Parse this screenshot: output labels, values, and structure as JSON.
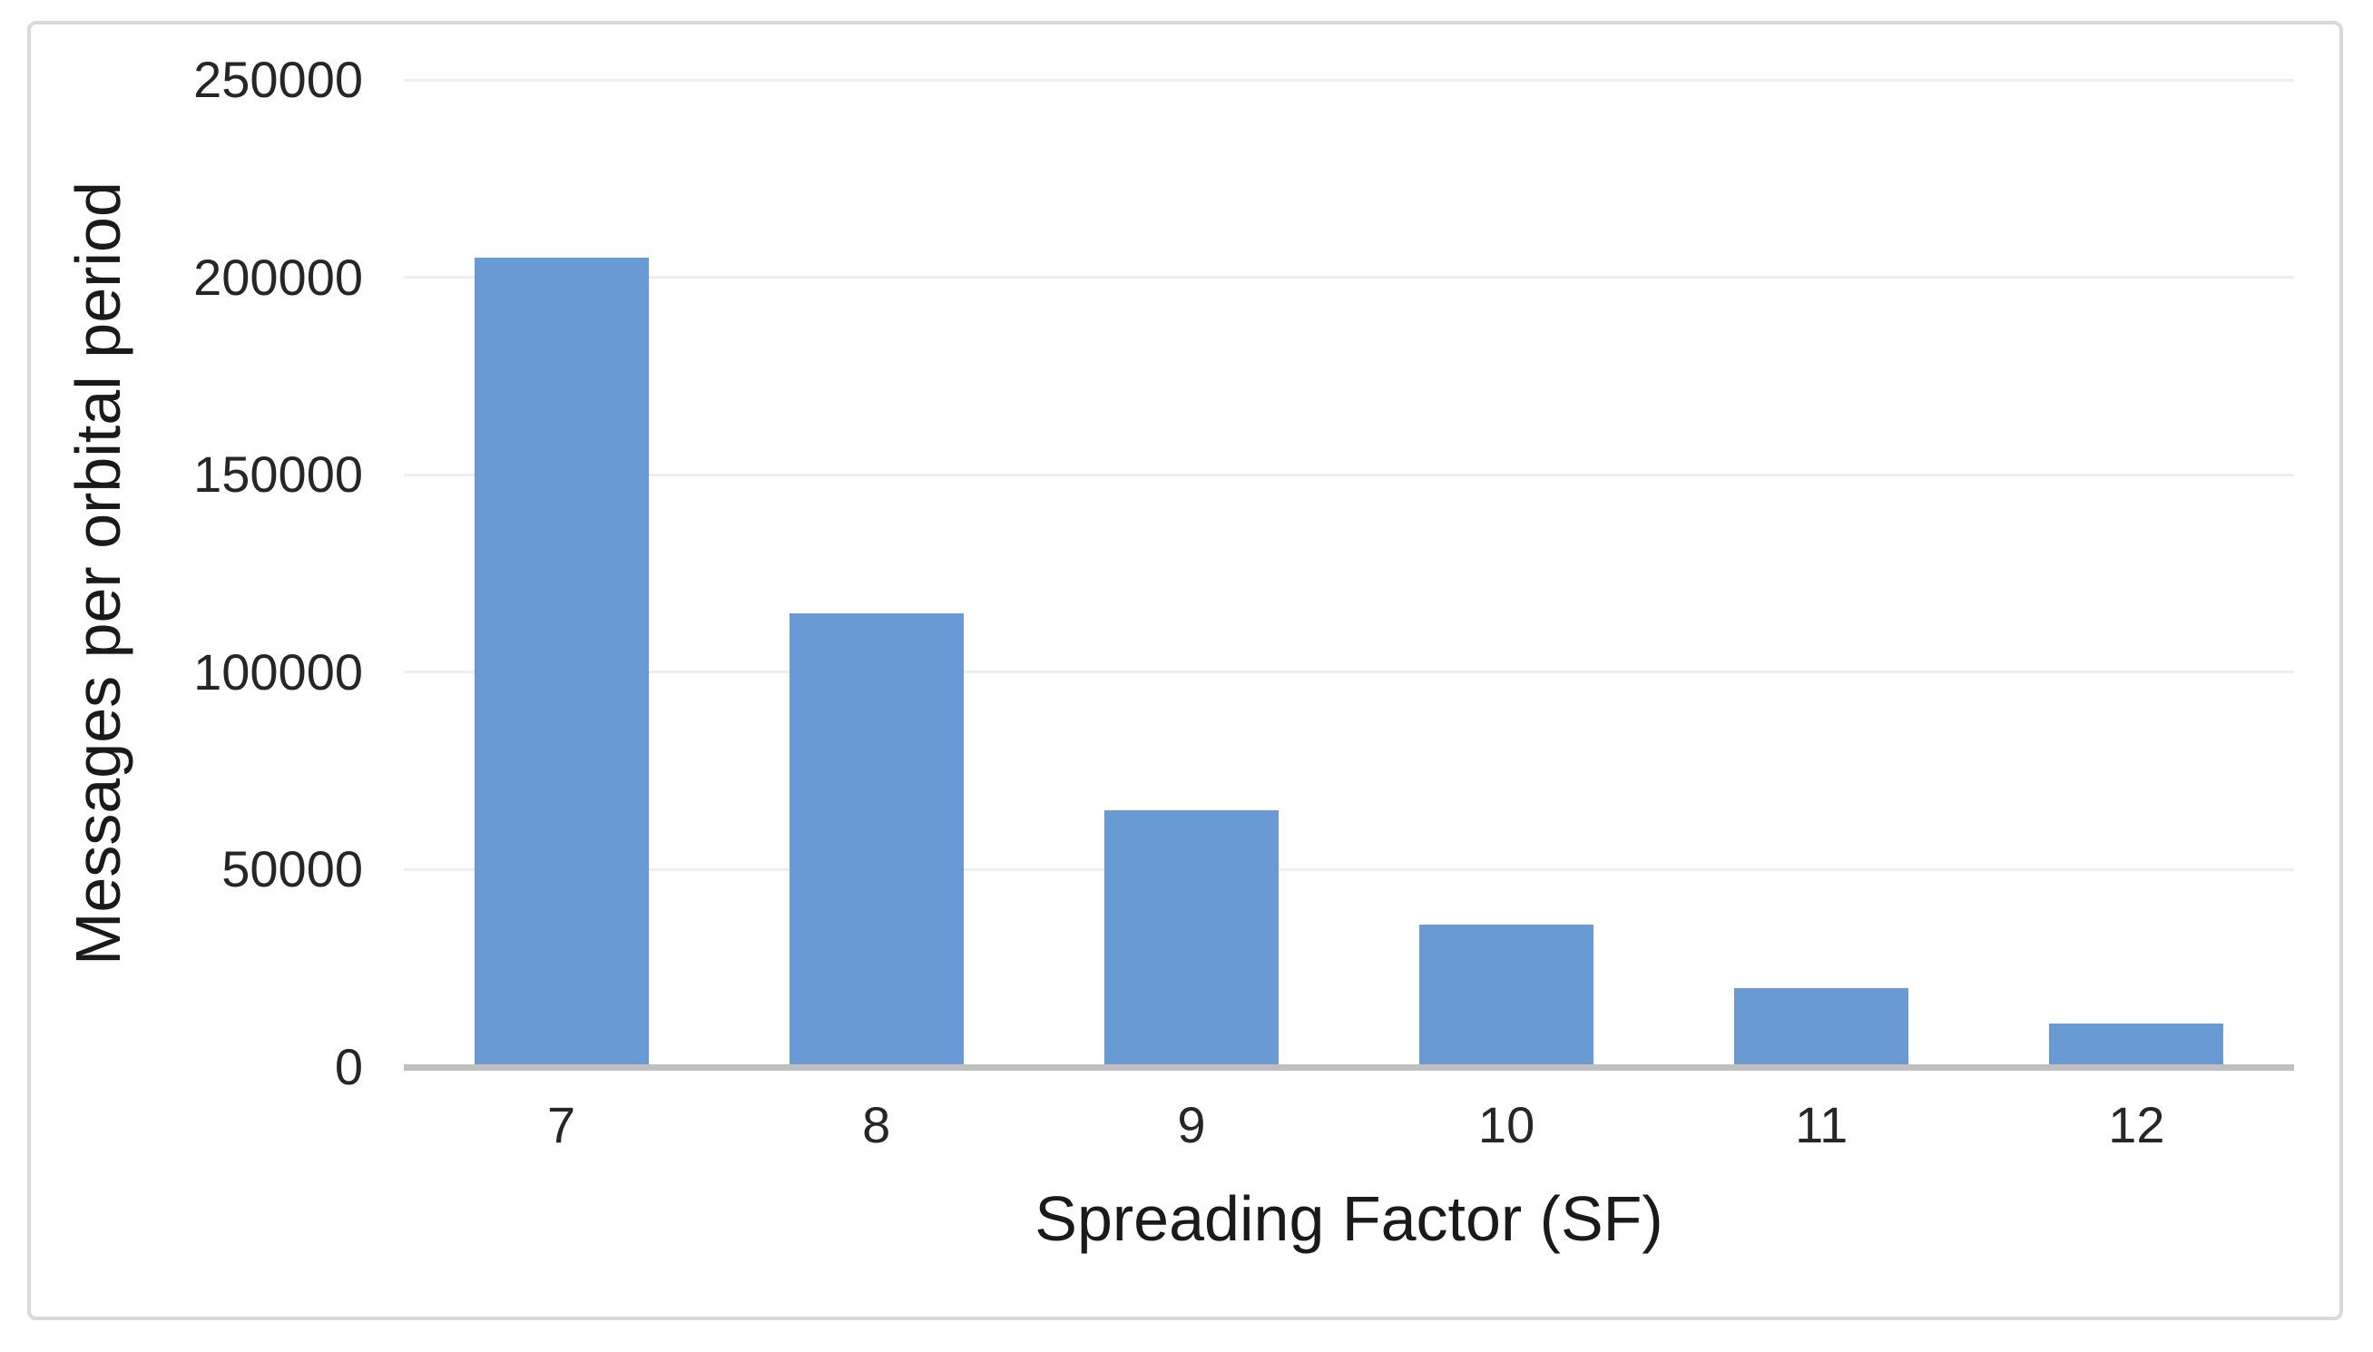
{
  "chart_data": {
    "type": "bar",
    "categories": [
      "7",
      "8",
      "9",
      "10",
      "11",
      "12"
    ],
    "values": [
      205000,
      115000,
      65000,
      36000,
      20000,
      11000
    ],
    "xlabel": "Spreading Factor (SF)",
    "ylabel": "Messages per orbital period",
    "ylim": [
      0,
      250000
    ],
    "ytick_interval": 50000,
    "yticks": [
      "0",
      "50000",
      "100000",
      "150000",
      "200000",
      "250000"
    ],
    "grid": true,
    "legend_position": "none",
    "colors": {
      "bar_fill": "#699ad3",
      "axis_line": "#bfbfbf",
      "gridline": "#eeeeee",
      "frame_border": "#d9d9d9",
      "tick_label": "#262626",
      "axis_title": "#1a1a1a",
      "background": "#ffffff"
    }
  }
}
